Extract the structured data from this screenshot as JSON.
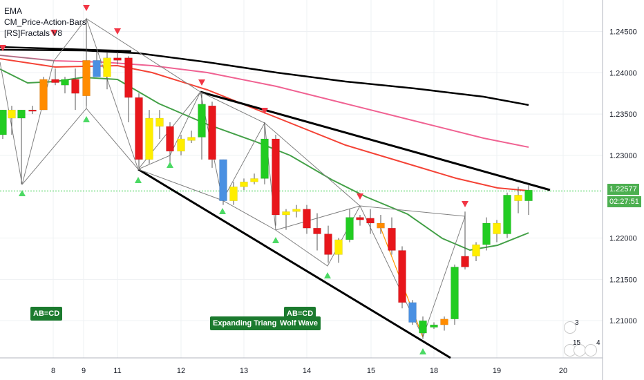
{
  "legend": [
    "EMA",
    "CM_Price-Action-Bars",
    "[RS]Fractals V8"
  ],
  "chart_data": {
    "type": "candlestick",
    "x_tick_labels": [
      "8",
      "9",
      "11",
      "12",
      "13",
      "14",
      "15",
      "18",
      "19",
      "20"
    ],
    "y_ticks": [
      1.21,
      1.215,
      1.22,
      1.2257,
      1.23,
      1.235,
      1.24,
      1.245
    ],
    "y_tick_labels": [
      "1.21000",
      "1.21500",
      "1.22000",
      "1.22577",
      "1.23000",
      "1.23500",
      "1.24000",
      "1.24500"
    ],
    "ylim": [
      1.2055,
      1.2488
    ],
    "grid": true,
    "current_price": "1.22577",
    "countdown": "02:27:51",
    "candles": [
      {
        "x": 4,
        "o": 1.2325,
        "h": 1.2355,
        "l": 1.232,
        "c": 1.2355,
        "color": "#22cc22"
      },
      {
        "x": 17,
        "o": 1.2345,
        "h": 1.236,
        "l": 1.2325,
        "c": 1.2355,
        "color": "#ffee00"
      },
      {
        "x": 31,
        "o": 1.2345,
        "h": 1.2355,
        "l": 1.2265,
        "c": 1.2355,
        "color": "#22cc22"
      },
      {
        "x": 47,
        "o": 1.2355,
        "h": 1.236,
        "l": 1.235,
        "c": 1.2355,
        "color": "#e8161b"
      },
      {
        "x": 63,
        "o": 1.2355,
        "h": 1.2395,
        "l": 1.2355,
        "c": 1.2392,
        "color": "#ff8c00"
      },
      {
        "x": 80,
        "o": 1.2392,
        "h": 1.2405,
        "l": 1.2385,
        "c": 1.2388,
        "color": "#e8161b"
      },
      {
        "x": 94,
        "o": 1.2385,
        "h": 1.2395,
        "l": 1.2375,
        "c": 1.2392,
        "color": "#22cc22"
      },
      {
        "x": 109,
        "o": 1.2392,
        "h": 1.2405,
        "l": 1.2355,
        "c": 1.2375,
        "color": "#e8161b"
      },
      {
        "x": 125,
        "o": 1.2372,
        "h": 1.2465,
        "l": 1.236,
        "c": 1.2415,
        "color": "#ff8c00"
      },
      {
        "x": 140,
        "o": 1.2415,
        "h": 1.2425,
        "l": 1.2395,
        "c": 1.2395,
        "color": "#4a90e2"
      },
      {
        "x": 155,
        "o": 1.2395,
        "h": 1.2425,
        "l": 1.238,
        "c": 1.2418,
        "color": "#ffee00"
      },
      {
        "x": 170,
        "o": 1.2418,
        "h": 1.2425,
        "l": 1.241,
        "c": 1.2415,
        "color": "#e8161b"
      },
      {
        "x": 186,
        "o": 1.2418,
        "h": 1.242,
        "l": 1.234,
        "c": 1.237,
        "color": "#e8161b"
      },
      {
        "x": 201,
        "o": 1.237,
        "h": 1.2375,
        "l": 1.2285,
        "c": 1.2295,
        "color": "#e8161b"
      },
      {
        "x": 216,
        "o": 1.2295,
        "h": 1.2355,
        "l": 1.229,
        "c": 1.2345,
        "color": "#ffee00"
      },
      {
        "x": 231,
        "o": 1.2335,
        "h": 1.2355,
        "l": 1.232,
        "c": 1.2345,
        "color": "#ffee00"
      },
      {
        "x": 246,
        "o": 1.2335,
        "h": 1.234,
        "l": 1.2285,
        "c": 1.2305,
        "color": "#e8161b"
      },
      {
        "x": 262,
        "o": 1.2305,
        "h": 1.2325,
        "l": 1.23,
        "c": 1.232,
        "color": "#ffee00"
      },
      {
        "x": 277,
        "o": 1.2318,
        "h": 1.233,
        "l": 1.2315,
        "c": 1.2322,
        "color": "#ffee00"
      },
      {
        "x": 292,
        "o": 1.2322,
        "h": 1.2375,
        "l": 1.2295,
        "c": 1.2362,
        "color": "#22cc22"
      },
      {
        "x": 307,
        "o": 1.236,
        "h": 1.2365,
        "l": 1.2285,
        "c": 1.2295,
        "color": "#e8161b"
      },
      {
        "x": 323,
        "o": 1.2295,
        "h": 1.2295,
        "l": 1.224,
        "c": 1.2245,
        "color": "#4a90e2"
      },
      {
        "x": 338,
        "o": 1.2245,
        "h": 1.2268,
        "l": 1.224,
        "c": 1.2262,
        "color": "#ffee00"
      },
      {
        "x": 353,
        "o": 1.2262,
        "h": 1.2272,
        "l": 1.2258,
        "c": 1.2268,
        "color": "#ffee00"
      },
      {
        "x": 368,
        "o": 1.2268,
        "h": 1.2278,
        "l": 1.2265,
        "c": 1.2272,
        "color": "#ffee00"
      },
      {
        "x": 383,
        "o": 1.2272,
        "h": 1.234,
        "l": 1.2265,
        "c": 1.232,
        "color": "#22cc22"
      },
      {
        "x": 399,
        "o": 1.232,
        "h": 1.2325,
        "l": 1.2215,
        "c": 1.2228,
        "color": "#e8161b"
      },
      {
        "x": 414,
        "o": 1.2228,
        "h": 1.2235,
        "l": 1.221,
        "c": 1.2232,
        "color": "#ffee00"
      },
      {
        "x": 429,
        "o": 1.2232,
        "h": 1.224,
        "l": 1.2225,
        "c": 1.2235,
        "color": "#ffee00"
      },
      {
        "x": 444,
        "o": 1.2235,
        "h": 1.224,
        "l": 1.2205,
        "c": 1.2212,
        "color": "#e8161b"
      },
      {
        "x": 459,
        "o": 1.2212,
        "h": 1.223,
        "l": 1.2185,
        "c": 1.2205,
        "color": "#e8161b"
      },
      {
        "x": 475,
        "o": 1.2205,
        "h": 1.2215,
        "l": 1.217,
        "c": 1.218,
        "color": "#e8161b"
      },
      {
        "x": 490,
        "o": 1.218,
        "h": 1.22,
        "l": 1.217,
        "c": 1.2198,
        "color": "#ffee00"
      },
      {
        "x": 506,
        "o": 1.2198,
        "h": 1.2235,
        "l": 1.2195,
        "c": 1.2225,
        "color": "#22cc22"
      },
      {
        "x": 521,
        "o": 1.2225,
        "h": 1.2228,
        "l": 1.2215,
        "c": 1.2222,
        "color": "#e8161b"
      },
      {
        "x": 536,
        "o": 1.2224,
        "h": 1.2235,
        "l": 1.2205,
        "c": 1.2218,
        "color": "#e8161b"
      },
      {
        "x": 551,
        "o": 1.2218,
        "h": 1.2228,
        "l": 1.2205,
        "c": 1.2212,
        "color": "#ff8c00"
      },
      {
        "x": 567,
        "o": 1.2212,
        "h": 1.2225,
        "l": 1.218,
        "c": 1.2185,
        "color": "#e8161b"
      },
      {
        "x": 582,
        "o": 1.2185,
        "h": 1.219,
        "l": 1.2115,
        "c": 1.2122,
        "color": "#e8161b"
      },
      {
        "x": 597,
        "o": 1.2122,
        "h": 1.2125,
        "l": 1.2095,
        "c": 1.2098,
        "color": "#4a90e2"
      },
      {
        "x": 612,
        "o": 1.21,
        "h": 1.2105,
        "l": 1.2078,
        "c": 1.2085,
        "color": "#22cc22"
      },
      {
        "x": 628,
        "o": 1.2095,
        "h": 1.2098,
        "l": 1.209,
        "c": 1.2092,
        "color": "#22cc22"
      },
      {
        "x": 643,
        "o": 1.2095,
        "h": 1.2105,
        "l": 1.2088,
        "c": 1.2102,
        "color": "#ff8c00"
      },
      {
        "x": 658,
        "o": 1.2102,
        "h": 1.2168,
        "l": 1.2095,
        "c": 1.2165,
        "color": "#22cc22"
      },
      {
        "x": 673,
        "o": 1.2178,
        "h": 1.2232,
        "l": 1.2162,
        "c": 1.2165,
        "color": "#e8161b"
      },
      {
        "x": 689,
        "o": 1.2178,
        "h": 1.2195,
        "l": 1.2172,
        "c": 1.2192,
        "color": "#ffee00"
      },
      {
        "x": 704,
        "o": 1.2192,
        "h": 1.2225,
        "l": 1.2185,
        "c": 1.2218,
        "color": "#22cc22"
      },
      {
        "x": 719,
        "o": 1.2218,
        "h": 1.2222,
        "l": 1.2195,
        "c": 1.2205,
        "color": "#ffee00"
      },
      {
        "x": 734,
        "o": 1.2205,
        "h": 1.2255,
        "l": 1.22,
        "c": 1.2252,
        "color": "#22cc22"
      },
      {
        "x": 750,
        "o": 1.2252,
        "h": 1.2262,
        "l": 1.223,
        "c": 1.2245,
        "color": "#ffee00"
      },
      {
        "x": 765,
        "o": 1.2245,
        "h": 1.2265,
        "l": 1.2228,
        "c": 1.2258,
        "color": "#22cc22"
      }
    ],
    "annotations": [
      "AB=CD",
      "Expanding Triangle",
      "AB=CD",
      "Wolf Wave"
    ],
    "events": [
      "3",
      "15",
      "4"
    ]
  }
}
